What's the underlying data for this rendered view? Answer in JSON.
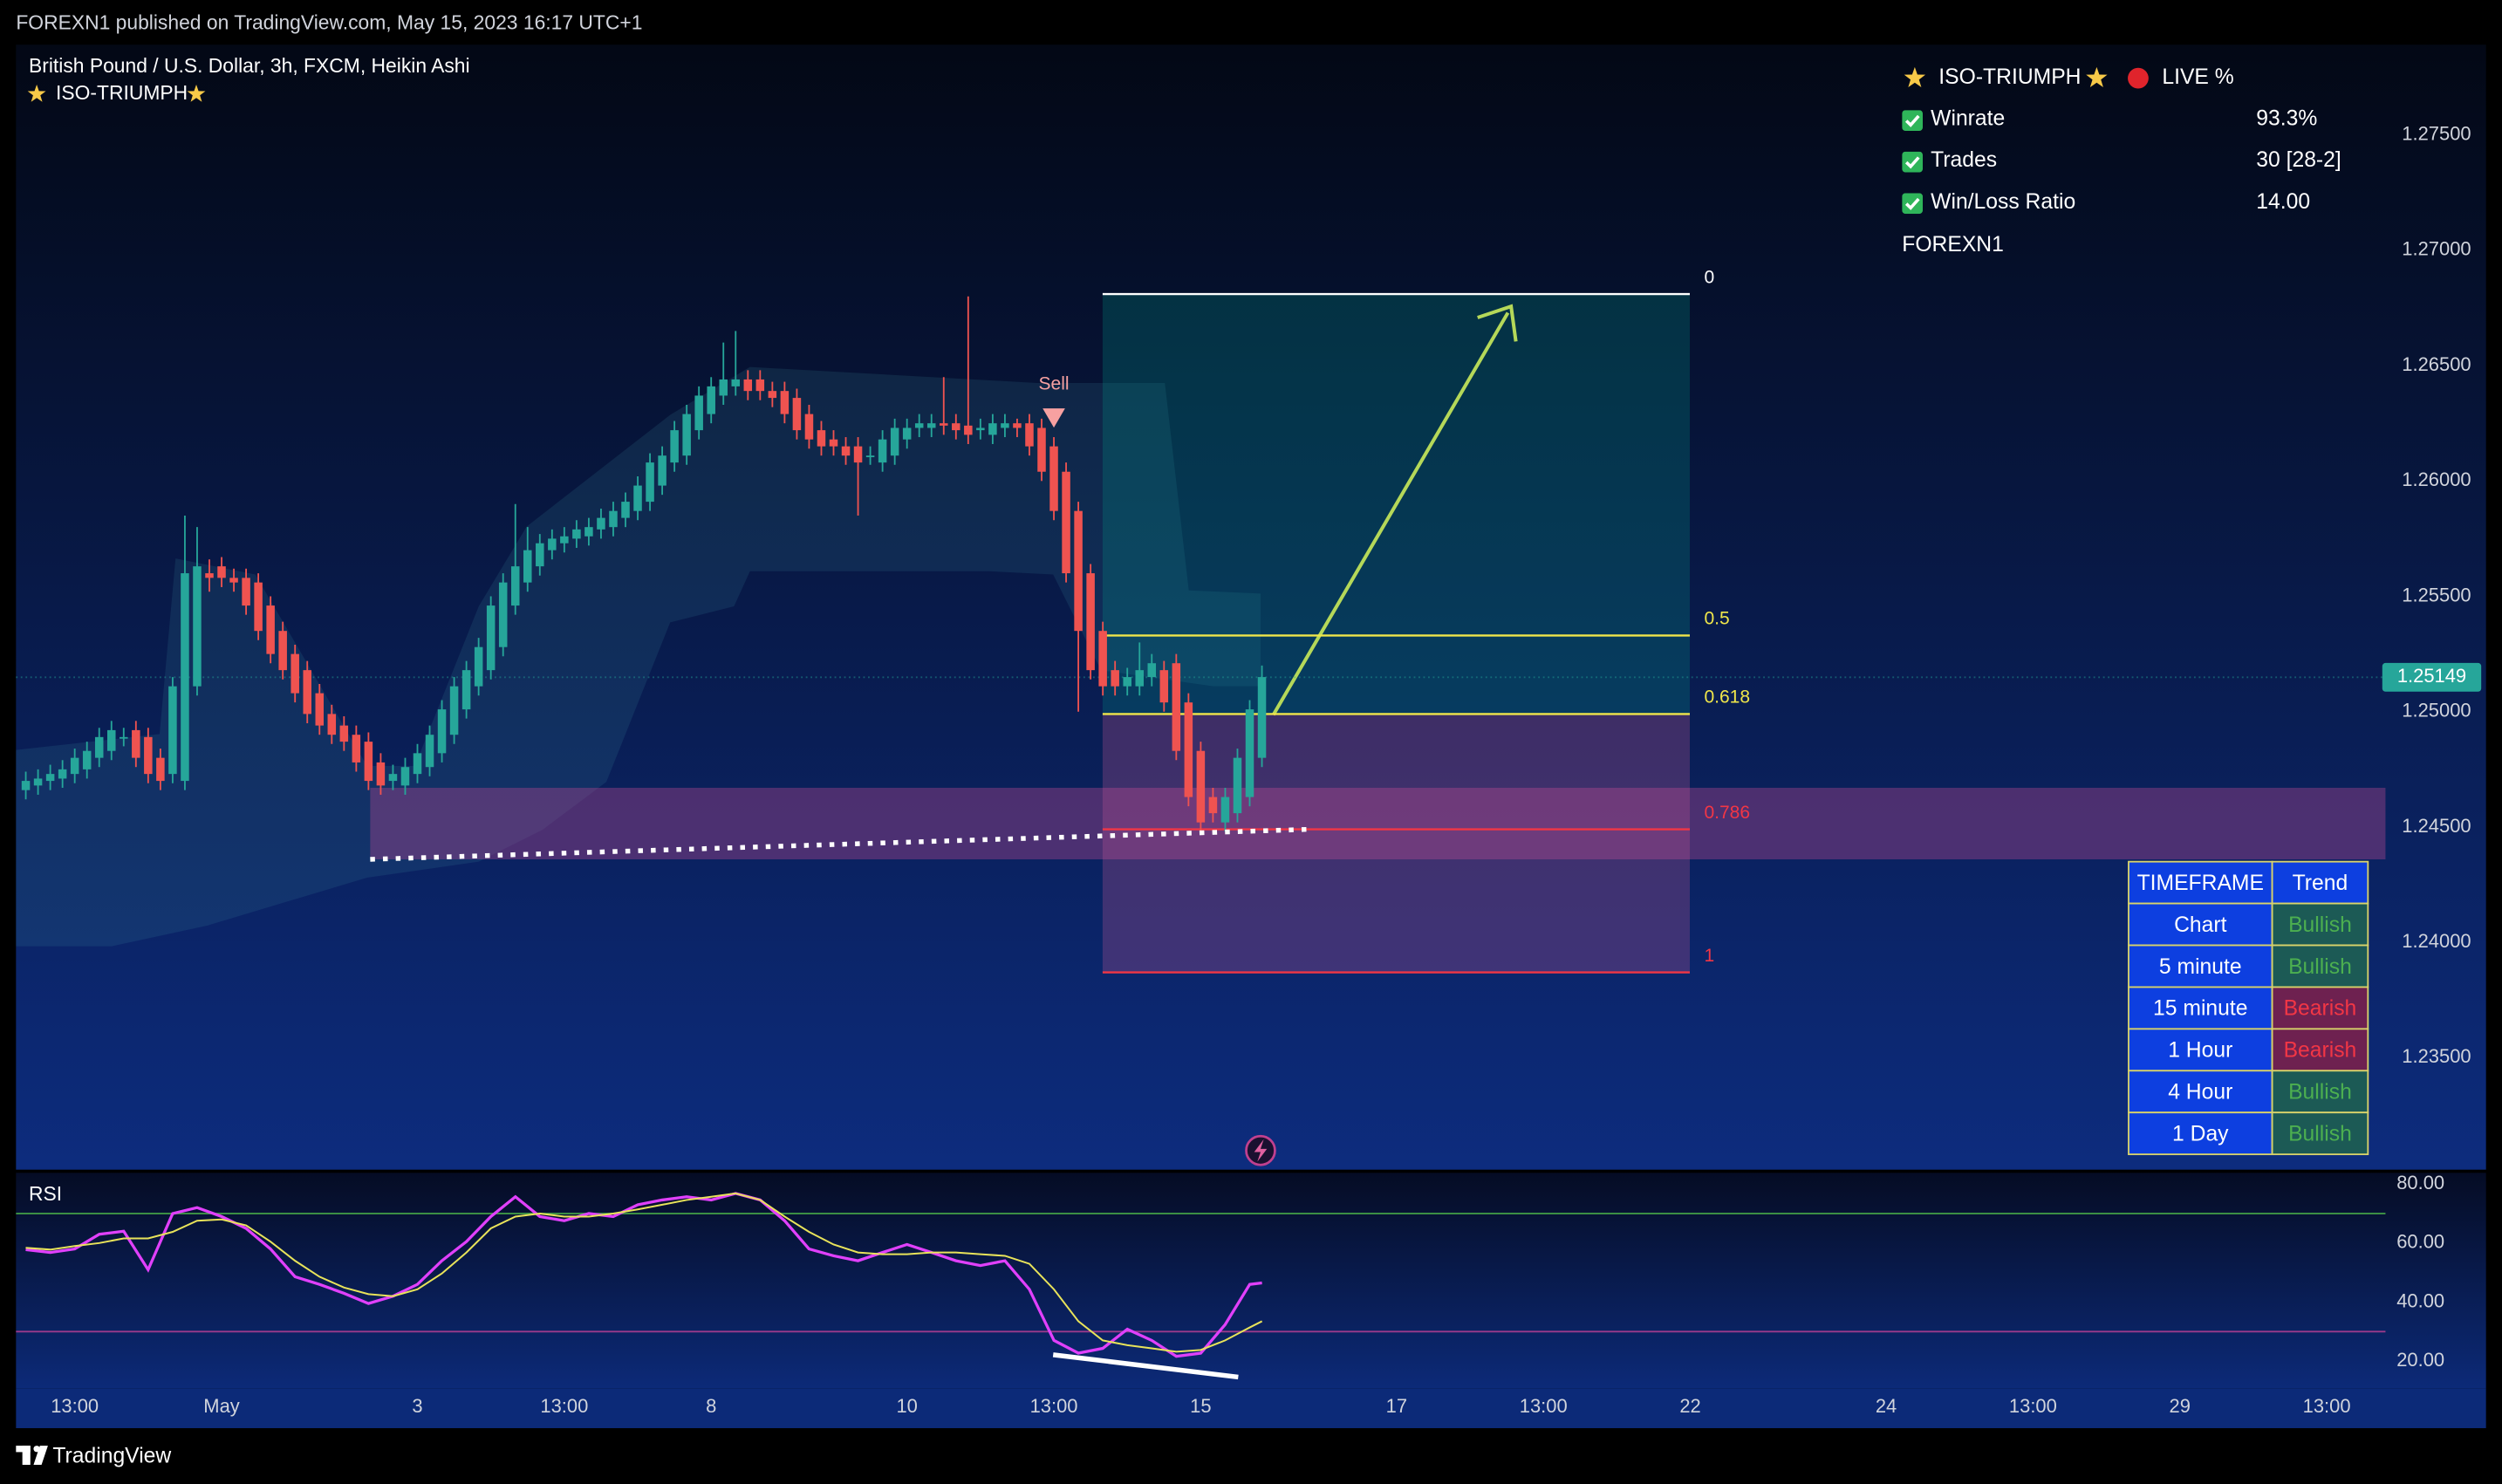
{
  "header": {
    "publisher": "FOREXN1 published on TradingView.com, May 15, 2023 16:17 UTC+1",
    "brand": "TradingView"
  },
  "panel": {
    "title": "ISO-TRIUMPH",
    "status": "LIVE %",
    "rows": [
      [
        "Winrate",
        "93.3%"
      ],
      [
        "Trades",
        "30 [28-2]"
      ],
      [
        "Win/Loss Ratio",
        "14.00"
      ]
    ],
    "author": "FOREXN1"
  },
  "trend_table": {
    "header": [
      "TIMEFRAME",
      "Trend"
    ],
    "rows": [
      {
        "timeframe": "Chart",
        "trend": "Bullish",
        "color": "#4caf50",
        "background": "#1c5a55"
      },
      {
        "timeframe": "5 minute",
        "trend": "Bullish",
        "color": "#4caf50",
        "background": "#1c5a55"
      },
      {
        "timeframe": "15 minute",
        "trend": "Bearish",
        "color": "#f23645",
        "background": "#6e2150"
      },
      {
        "timeframe": "1 Hour",
        "trend": "Bearish",
        "color": "#f23645",
        "background": "#6e2150"
      },
      {
        "timeframe": "4 Hour",
        "trend": "Bullish",
        "color": "#4caf50",
        "background": "#1c5a55"
      },
      {
        "timeframe": "1 Day",
        "trend": "Bullish",
        "color": "#4caf50",
        "background": "#1c5a55"
      }
    ]
  },
  "chart_data": [
    {
      "type": "candlestick",
      "title": "British Pound / U.S. Dollar, 3h, FXCM, Heikin Ashi",
      "indicator": "ISO-TRIUMPH",
      "xlim": [
        -0.8,
        192.8
      ],
      "ylim": [
        1.23015,
        1.27891
      ],
      "yticks": [
        {
          "value": 1.235,
          "label": "1.23500"
        },
        {
          "value": 1.24,
          "label": "1.24000"
        },
        {
          "value": 1.245,
          "label": "1.24500"
        },
        {
          "value": 1.25,
          "label": "1.25000"
        },
        {
          "value": 1.255,
          "label": "1.25500"
        },
        {
          "value": 1.26,
          "label": "1.26000"
        },
        {
          "value": 1.265,
          "label": "1.26500"
        },
        {
          "value": 1.27,
          "label": "1.27000"
        },
        {
          "value": 1.275,
          "label": "1.27500"
        }
      ],
      "up_color": "#26a69a",
      "down_color": "#ef5350",
      "open": [
        1.2466,
        1.2468,
        1.247,
        1.2471,
        1.2473,
        1.2475,
        1.248,
        1.2483,
        1.2489,
        1.2492,
        1.2489,
        1.248,
        1.2473,
        1.247,
        1.2511,
        1.256,
        1.2563,
        1.2558,
        1.2558,
        1.2556,
        1.2546,
        1.2535,
        1.2525,
        1.2518,
        1.2508,
        1.2499,
        1.2494,
        1.249,
        1.2487,
        1.2478,
        1.247,
        1.2468,
        1.2473,
        1.2476,
        1.2482,
        1.249,
        1.2501,
        1.2511,
        1.2518,
        1.2528,
        1.2546,
        1.2556,
        1.2563,
        1.257,
        1.2573,
        1.2575,
        1.2576,
        1.2579,
        1.258,
        1.2584,
        1.2587,
        1.2591,
        1.2598,
        1.2608,
        1.2611,
        1.2622,
        1.2629,
        1.2637,
        1.2641,
        1.2644,
        1.2644,
        1.2639,
        1.2639,
        1.2636,
        1.2629,
        1.2622,
        1.2618,
        1.2615,
        1.2615,
        1.2611,
        1.2608,
        1.2611,
        1.2618,
        1.2623,
        1.2623,
        1.2625,
        1.2625,
        1.2624,
        1.2622,
        1.262,
        1.2623,
        1.2625,
        1.2625,
        1.2623,
        1.2615,
        1.2604,
        1.2587,
        1.256,
        1.2535,
        1.2518,
        1.2511,
        1.2511,
        1.2515,
        1.2518,
        1.2521,
        1.2504,
        1.2483,
        1.2463,
        1.2452,
        1.2456,
        1.2463,
        1.248
      ],
      "high": [
        1.2474,
        1.2475,
        1.2477,
        1.2479,
        1.2484,
        1.2487,
        1.2493,
        1.2496,
        1.2493,
        1.2496,
        1.2493,
        1.2484,
        1.2515,
        1.2585,
        1.258,
        1.2566,
        1.2567,
        1.2562,
        1.2562,
        1.256,
        1.255,
        1.2539,
        1.2529,
        1.2522,
        1.2512,
        1.2503,
        1.2498,
        1.2494,
        1.2491,
        1.2482,
        1.2477,
        1.248,
        1.2486,
        1.2494,
        1.2505,
        1.2515,
        1.2522,
        1.2532,
        1.255,
        1.256,
        1.259,
        1.258,
        1.2577,
        1.2579,
        1.258,
        1.2583,
        1.2584,
        1.2588,
        1.2591,
        1.2595,
        1.2602,
        1.2612,
        1.2615,
        1.2626,
        1.2633,
        1.2641,
        1.2645,
        1.266,
        1.2665,
        1.2648,
        1.2648,
        1.2643,
        1.2643,
        1.264,
        1.2633,
        1.2626,
        1.2622,
        1.2619,
        1.2619,
        1.2615,
        1.2622,
        1.2627,
        1.2627,
        1.2629,
        1.2629,
        1.2645,
        1.2629,
        1.268,
        1.2627,
        1.2629,
        1.2629,
        1.2627,
        1.2629,
        1.2627,
        1.2619,
        1.2608,
        1.2591,
        1.2564,
        1.2539,
        1.2522,
        1.2519,
        1.253,
        1.2525,
        1.2522,
        1.2525,
        1.2508,
        1.2487,
        1.2467,
        1.2467,
        1.2484,
        1.2505,
        1.252
      ],
      "low": [
        1.2462,
        1.2464,
        1.2466,
        1.2467,
        1.2469,
        1.2471,
        1.2476,
        1.2479,
        1.2485,
        1.2476,
        1.2469,
        1.2466,
        1.2469,
        1.2466,
        1.2507,
        1.2552,
        1.2554,
        1.2552,
        1.2542,
        1.2531,
        1.2521,
        1.2514,
        1.2504,
        1.2495,
        1.249,
        1.2486,
        1.2483,
        1.2474,
        1.2466,
        1.2464,
        1.2466,
        1.2464,
        1.2469,
        1.2472,
        1.2478,
        1.2486,
        1.2497,
        1.2507,
        1.2514,
        1.2524,
        1.2542,
        1.2552,
        1.2559,
        1.2566,
        1.2569,
        1.2571,
        1.2572,
        1.2575,
        1.2576,
        1.258,
        1.2583,
        1.2587,
        1.2594,
        1.2604,
        1.2607,
        1.2618,
        1.2625,
        1.2633,
        1.2637,
        1.2635,
        1.2635,
        1.2632,
        1.2625,
        1.2618,
        1.2614,
        1.2611,
        1.2611,
        1.2607,
        1.2585,
        1.2607,
        1.2604,
        1.2607,
        1.2614,
        1.2619,
        1.2619,
        1.262,
        1.2618,
        1.2616,
        1.2618,
        1.2616,
        1.2619,
        1.2619,
        1.2611,
        1.26,
        1.2583,
        1.2556,
        1.25,
        1.2514,
        1.2507,
        1.2507,
        1.2507,
        1.2507,
        1.2511,
        1.25,
        1.2479,
        1.2459,
        1.2448,
        1.2452,
        1.2448,
        1.2452,
        1.2459,
        1.2476
      ],
      "close": [
        1.247,
        1.2471,
        1.2473,
        1.2475,
        1.248,
        1.2483,
        1.2489,
        1.2492,
        1.2489,
        1.248,
        1.2473,
        1.247,
        1.2511,
        1.256,
        1.2563,
        1.2558,
        1.2558,
        1.2556,
        1.2546,
        1.2535,
        1.2525,
        1.2518,
        1.2508,
        1.2499,
        1.2494,
        1.249,
        1.2487,
        1.2478,
        1.247,
        1.2468,
        1.2473,
        1.2476,
        1.2482,
        1.249,
        1.2501,
        1.2511,
        1.2518,
        1.2528,
        1.2546,
        1.2556,
        1.2563,
        1.257,
        1.2573,
        1.2575,
        1.2576,
        1.2579,
        1.258,
        1.2584,
        1.2587,
        1.2591,
        1.2598,
        1.2608,
        1.2611,
        1.2622,
        1.2629,
        1.2637,
        1.2641,
        1.2644,
        1.2644,
        1.2639,
        1.2639,
        1.2636,
        1.2629,
        1.2622,
        1.2618,
        1.2615,
        1.2615,
        1.2611,
        1.2608,
        1.2611,
        1.2618,
        1.2623,
        1.2623,
        1.2625,
        1.2625,
        1.2624,
        1.2622,
        1.262,
        1.2623,
        1.2625,
        1.2625,
        1.2623,
        1.2615,
        1.2604,
        1.2587,
        1.256,
        1.2535,
        1.2518,
        1.2511,
        1.2511,
        1.2515,
        1.2518,
        1.2521,
        1.2504,
        1.2483,
        1.2463,
        1.2452,
        1.2456,
        1.2463,
        1.248,
        1.2501,
        1.2515
      ],
      "last_price": 1.25149,
      "last_color": "#26a69a",
      "fib": [
        {
          "label": "0",
          "price": 1.2681,
          "color": "#ffffff"
        },
        {
          "label": "0.5",
          "price": 1.2533,
          "color": "#f0e64a"
        },
        {
          "label": "0.618",
          "price": 1.2499,
          "color": "#f0e64a"
        },
        {
          "label": "0.786",
          "price": 1.2449,
          "color": "#f23645"
        },
        {
          "label": "1",
          "price": 1.2387,
          "color": "#f23645"
        }
      ],
      "zone": [
        1.2436,
        1.2467
      ],
      "support": [
        1.2436,
        1.2449
      ],
      "signal": {
        "label": "Sell",
        "index": 84,
        "color": "#f7a1a1"
      }
    },
    {
      "type": "line",
      "title": "RSI",
      "xlim": [
        -0.8,
        192.8
      ],
      "ylim": [
        10.8,
        83.8
      ],
      "yticks": [
        {
          "value": 20,
          "label": "20.00"
        },
        {
          "value": 40,
          "label": "40.00"
        },
        {
          "value": 60,
          "label": "60.00"
        },
        {
          "value": 80,
          "label": "80.00"
        }
      ],
      "xticks": [
        {
          "value": 4,
          "label": "13:00"
        },
        {
          "value": 16,
          "label": "May"
        },
        {
          "value": 32,
          "label": "3"
        },
        {
          "value": 44,
          "label": "13:00"
        },
        {
          "value": 56,
          "label": "8"
        },
        {
          "value": 72,
          "label": "10"
        },
        {
          "value": 84,
          "label": "13:00"
        },
        {
          "value": 96,
          "label": "15"
        },
        {
          "value": 112,
          "label": "17"
        },
        {
          "value": 124,
          "label": "13:00"
        },
        {
          "value": 136,
          "label": "22"
        },
        {
          "value": 152,
          "label": "24"
        },
        {
          "value": 164,
          "label": "13:00"
        },
        {
          "value": 176,
          "label": "29"
        },
        {
          "value": 188,
          "label": "13:00"
        }
      ],
      "levels": [
        {
          "value": 70,
          "color": "#43a047"
        },
        {
          "value": 30,
          "color": "#9c3a8c"
        }
      ],
      "x": [
        0,
        2,
        4,
        6,
        8,
        10,
        12,
        14,
        16,
        18,
        20,
        22,
        24,
        26,
        28,
        30,
        32,
        34,
        36,
        38,
        40,
        42,
        44,
        46,
        48,
        50,
        52,
        54,
        56,
        58,
        60,
        62,
        64,
        66,
        68,
        70,
        72,
        74,
        76,
        78,
        80,
        82,
        84,
        86,
        88,
        90,
        92,
        94,
        96,
        98,
        100,
        101
      ],
      "series": [
        {
          "color": "#e040fb",
          "values": [
            57.8,
            56.8,
            58,
            63,
            64,
            51,
            70,
            72,
            69,
            65,
            58,
            48.6,
            46,
            43,
            39.5,
            42,
            46,
            54,
            60.5,
            69,
            75.7,
            69,
            67.6,
            70,
            69,
            73,
            74.6,
            75.7,
            74.6,
            76.8,
            74.6,
            67.6,
            58,
            55.7,
            54,
            56.8,
            59.5,
            56.8,
            54,
            52.4,
            54,
            44.3,
            27,
            22.7,
            24.3,
            30.8,
            27,
            21.6,
            22.7,
            32.4,
            46,
            46.5
          ]
        },
        {
          "color": "#e8e35a",
          "values": [
            58.4,
            57.8,
            59,
            60,
            61.6,
            61.6,
            63.8,
            67.6,
            68,
            66,
            60.5,
            54,
            48.6,
            44.9,
            42.7,
            42,
            44.3,
            49.7,
            56.8,
            65,
            69,
            70,
            69,
            69,
            70,
            71.4,
            73,
            74.6,
            75.7,
            76.8,
            74.6,
            69,
            63.8,
            59.5,
            56.8,
            56.2,
            56.2,
            56.8,
            56.8,
            56.2,
            55.7,
            53,
            44.3,
            33.5,
            27,
            25.4,
            24.3,
            23.2,
            23.8,
            27,
            31.4,
            33.5
          ]
        }
      ]
    }
  ]
}
